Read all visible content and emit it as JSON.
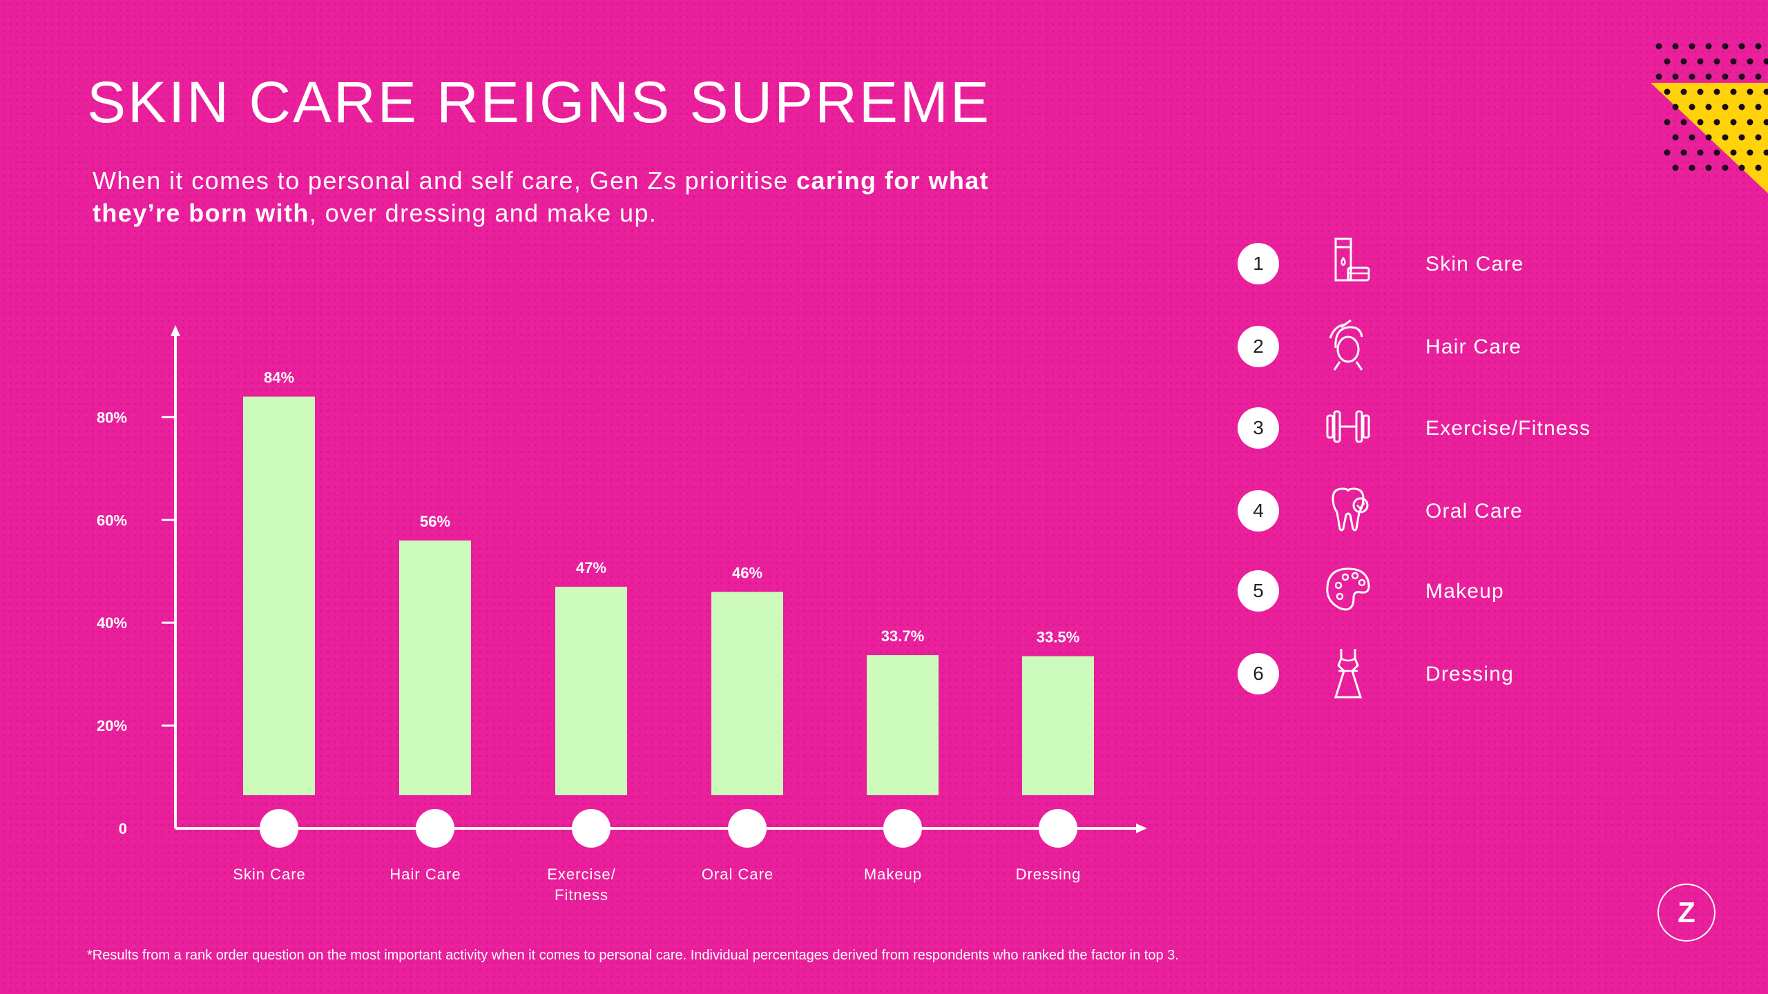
{
  "slide": {
    "title": "SKIN CARE REIGNS SUPREME",
    "subtitle_pre": "When it comes to personal and self care, Gen Zs prioritise ",
    "subtitle_bold": "caring for what they’re born with",
    "subtitle_post": ", over dressing and make up.",
    "footnote": "*Results from a rank order question on the most important activity when it comes to personal care. Individual percentages derived from respondents who ranked the factor in top 3.",
    "logo_text": "Z"
  },
  "colors": {
    "background": "#ea1f9c",
    "bar": "#ccfbbb",
    "axis": "#ffffff",
    "corner_accent": "#ffd20a"
  },
  "legend": [
    {
      "rank": "1",
      "label": "Skin Care",
      "icon": "lotion-icon"
    },
    {
      "rank": "2",
      "label": "Hair Care",
      "icon": "hair-brush-icon"
    },
    {
      "rank": "3",
      "label": "Exercise/Fitness",
      "icon": "dumbbell-icon"
    },
    {
      "rank": "4",
      "label": "Oral Care",
      "icon": "tooth-icon"
    },
    {
      "rank": "5",
      "label": "Makeup",
      "icon": "palette-icon"
    },
    {
      "rank": "6",
      "label": "Dressing",
      "icon": "dress-icon"
    }
  ],
  "chart_data": {
    "type": "bar",
    "categories": [
      "Skin Care",
      "Hair Care",
      "Exercise/\nFitness",
      "Oral Care",
      "Makeup",
      "Dressing"
    ],
    "values": [
      84,
      56,
      47,
      46,
      33.7,
      33.5
    ],
    "data_labels": [
      "84%",
      "56%",
      "47%",
      "46%",
      "33.7%",
      "33.5%"
    ],
    "y_ticks": [
      0,
      20,
      40,
      60,
      80
    ],
    "y_tick_labels": [
      "0",
      "20%",
      "40%",
      "60%",
      "80%"
    ],
    "ylim": [
      0,
      92
    ],
    "grid": false,
    "legend": "none"
  }
}
